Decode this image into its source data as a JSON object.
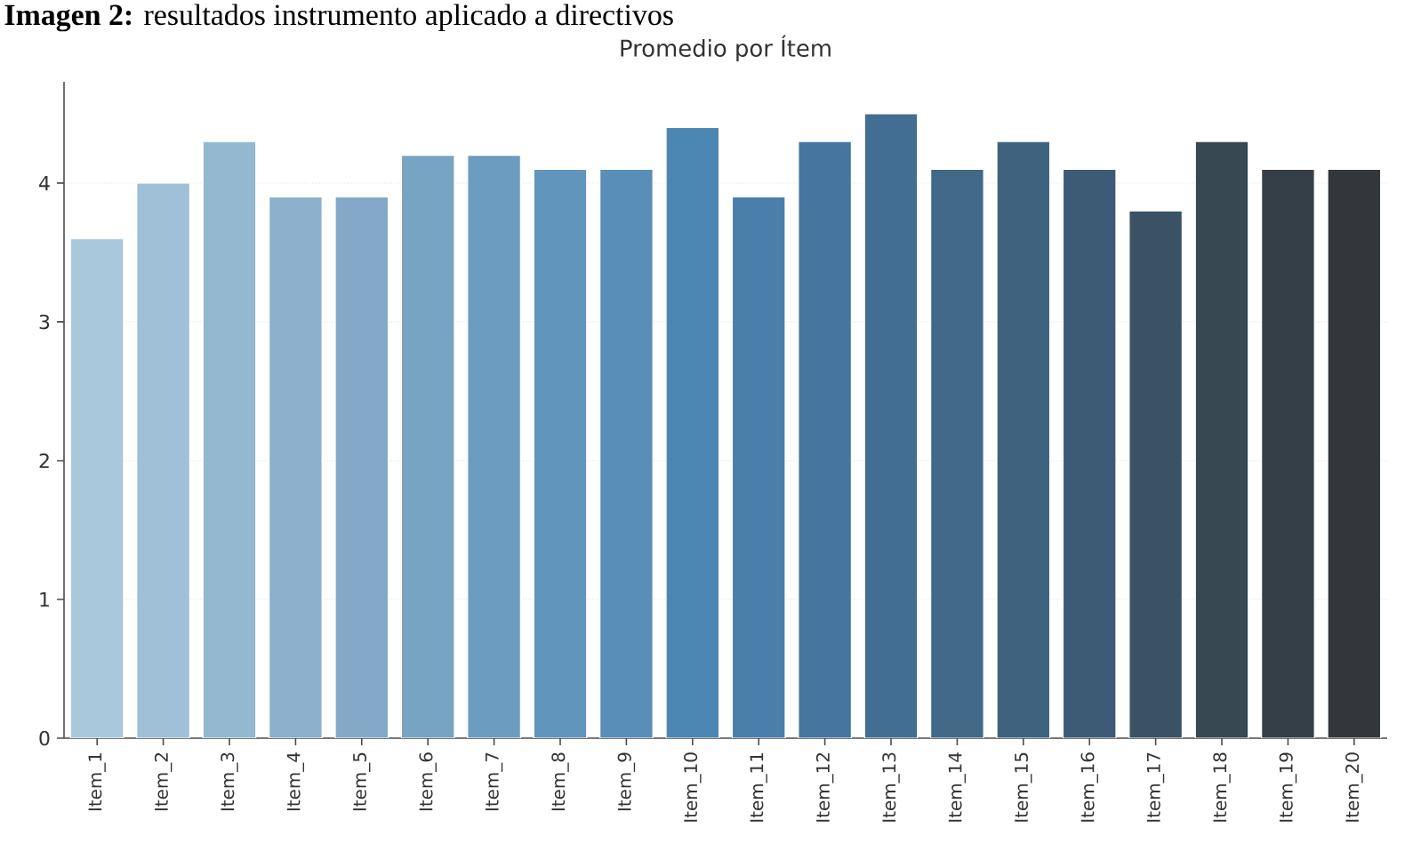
{
  "chart_data": {
    "type": "bar",
    "title": "Promedio por Ítem",
    "annotations": [
      "**Imagen 2:** resultados instrumento aplicado a directivos"
    ],
    "categories": [
      "Item_1",
      "Item_2",
      "Item_3",
      "Item_4",
      "Item_5",
      "Item_6",
      "Item_7",
      "Item_8",
      "Item_9",
      "Item_10",
      "Item_11",
      "Item_12",
      "Item_13",
      "Item_14",
      "Item_15",
      "Item_16",
      "Item_17",
      "Item_18",
      "Item_19",
      "Item_20"
    ],
    "values": [
      3.6,
      4.0,
      4.3,
      3.9,
      3.9,
      4.2,
      4.2,
      4.1,
      4.1,
      4.4,
      3.9,
      4.3,
      4.5,
      4.1,
      4.3,
      4.1,
      3.8,
      4.3,
      4.1,
      4.1
    ],
    "colors": [
      "#a9c8dc",
      "#9fc0d6",
      "#94b8d0",
      "#8cb0cc",
      "#84a9c8",
      "#77a4c3",
      "#6c9cbf",
      "#6295bc",
      "#588eb8",
      "#4c86b3",
      "#4a7fab",
      "#4675a0",
      "#436e93",
      "#416886",
      "#3f627e",
      "#3d5b74",
      "#3a5263",
      "#374853",
      "#353f47",
      "#33373b"
    ],
    "ylim": [
      0,
      4.73
    ],
    "yticks": [
      0,
      1,
      2,
      3,
      4
    ],
    "grid": "y"
  }
}
